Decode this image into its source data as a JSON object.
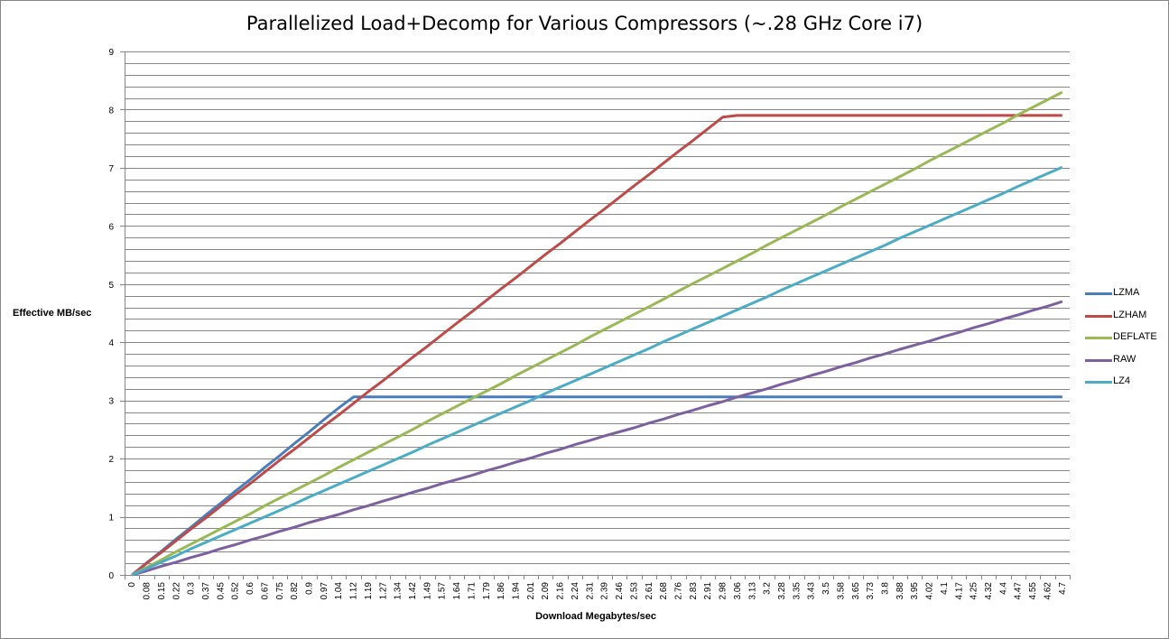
{
  "chart_data": {
    "type": "line",
    "title": "Parallelized Load+Decomp for Various Compressors (~.28 GHz Core i7)",
    "xlabel": "Download Megabytes/sec",
    "ylabel": "Effective MB/sec",
    "ylim": [
      0,
      9
    ],
    "yticks": [
      "0",
      "1",
      "2",
      "3",
      "4",
      "5",
      "6",
      "7",
      "8",
      "9"
    ],
    "grid": true,
    "legend_position": "right",
    "categories": [
      "0",
      "0.08",
      "0.15",
      "0.22",
      "0.3",
      "0.37",
      "0.45",
      "0.52",
      "0.6",
      "0.67",
      "0.75",
      "0.82",
      "0.9",
      "0.97",
      "1.04",
      "1.12",
      "1.19",
      "1.27",
      "1.34",
      "1.42",
      "1.49",
      "1.57",
      "1.64",
      "1.71",
      "1.79",
      "1.86",
      "1.94",
      "2.01",
      "2.09",
      "2.16",
      "2.24",
      "2.31",
      "2.39",
      "2.46",
      "2.53",
      "2.61",
      "2.68",
      "2.76",
      "2.83",
      "2.91",
      "2.98",
      "3.06",
      "3.13",
      "3.2",
      "3.28",
      "3.35",
      "3.43",
      "3.5",
      "3.58",
      "3.65",
      "3.73",
      "3.8",
      "3.88",
      "3.95",
      "4.02",
      "4.1",
      "4.17",
      "4.25",
      "4.32",
      "4.4",
      "4.47",
      "4.55",
      "4.62",
      "4.7"
    ],
    "series": [
      {
        "name": "LZMA",
        "color": "#4a7ebb",
        "values": [
          0,
          0.21,
          0.41,
          0.62,
          0.82,
          1.03,
          1.23,
          1.44,
          1.64,
          1.85,
          2.05,
          2.26,
          2.46,
          2.67,
          2.87,
          3.06,
          3.06,
          3.06,
          3.06,
          3.06,
          3.06,
          3.06,
          3.06,
          3.06,
          3.06,
          3.06,
          3.06,
          3.06,
          3.06,
          3.06,
          3.06,
          3.06,
          3.06,
          3.06,
          3.06,
          3.06,
          3.06,
          3.06,
          3.06,
          3.06,
          3.06,
          3.06,
          3.06,
          3.06,
          3.06,
          3.06,
          3.06,
          3.06,
          3.06,
          3.06,
          3.06,
          3.06,
          3.06,
          3.06,
          3.06,
          3.06,
          3.06,
          3.06,
          3.06,
          3.06,
          3.06,
          3.06,
          3.06,
          3.06
        ]
      },
      {
        "name": "LZHAM",
        "color": "#be4b48",
        "values": [
          0,
          0.2,
          0.39,
          0.59,
          0.79,
          0.98,
          1.18,
          1.38,
          1.57,
          1.77,
          1.97,
          2.16,
          2.36,
          2.56,
          2.75,
          2.95,
          3.15,
          3.34,
          3.54,
          3.74,
          3.93,
          4.13,
          4.33,
          4.52,
          4.72,
          4.92,
          5.11,
          5.31,
          5.51,
          5.7,
          5.9,
          6.1,
          6.29,
          6.49,
          6.69,
          6.88,
          7.08,
          7.28,
          7.47,
          7.67,
          7.87,
          7.9,
          7.9,
          7.9,
          7.9,
          7.9,
          7.9,
          7.9,
          7.9,
          7.9,
          7.9,
          7.9,
          7.9,
          7.9,
          7.9,
          7.9,
          7.9,
          7.9,
          7.9,
          7.9,
          7.9,
          7.9,
          7.9,
          7.9
        ]
      },
      {
        "name": "DEFLATE",
        "color": "#98b954",
        "values": [
          0,
          0.13,
          0.26,
          0.4,
          0.53,
          0.66,
          0.79,
          0.92,
          1.05,
          1.19,
          1.32,
          1.45,
          1.58,
          1.71,
          1.85,
          1.98,
          2.11,
          2.24,
          2.37,
          2.5,
          2.64,
          2.77,
          2.9,
          3.03,
          3.16,
          3.29,
          3.43,
          3.56,
          3.69,
          3.82,
          3.95,
          4.09,
          4.22,
          4.35,
          4.48,
          4.61,
          4.74,
          4.88,
          5.01,
          5.14,
          5.27,
          5.4,
          5.53,
          5.67,
          5.8,
          5.93,
          6.06,
          6.19,
          6.33,
          6.46,
          6.59,
          6.72,
          6.85,
          6.98,
          7.12,
          7.25,
          7.38,
          7.51,
          7.64,
          7.77,
          7.91,
          8.04,
          8.17,
          8.3
        ]
      },
      {
        "name": "RAW",
        "color": "#7d60a0",
        "values": [
          0,
          0.07,
          0.15,
          0.22,
          0.3,
          0.37,
          0.45,
          0.52,
          0.6,
          0.67,
          0.75,
          0.82,
          0.9,
          0.97,
          1.04,
          1.12,
          1.19,
          1.27,
          1.34,
          1.42,
          1.49,
          1.57,
          1.64,
          1.71,
          1.79,
          1.86,
          1.94,
          2.01,
          2.09,
          2.16,
          2.24,
          2.31,
          2.39,
          2.46,
          2.53,
          2.61,
          2.68,
          2.76,
          2.83,
          2.91,
          2.98,
          3.06,
          3.13,
          3.2,
          3.28,
          3.35,
          3.43,
          3.5,
          3.58,
          3.65,
          3.73,
          3.8,
          3.88,
          3.95,
          4.02,
          4.1,
          4.17,
          4.25,
          4.32,
          4.4,
          4.47,
          4.55,
          4.62,
          4.7
        ]
      },
      {
        "name": "LZ4",
        "color": "#4bacc6",
        "values": [
          0,
          0.11,
          0.22,
          0.33,
          0.45,
          0.56,
          0.67,
          0.78,
          0.89,
          1,
          1.11,
          1.22,
          1.34,
          1.45,
          1.56,
          1.67,
          1.78,
          1.89,
          2,
          2.11,
          2.23,
          2.34,
          2.45,
          2.56,
          2.67,
          2.78,
          2.89,
          3,
          3.12,
          3.23,
          3.34,
          3.45,
          3.56,
          3.67,
          3.78,
          3.89,
          4.01,
          4.12,
          4.23,
          4.34,
          4.45,
          4.56,
          4.67,
          4.78,
          4.9,
          5.01,
          5.12,
          5.23,
          5.34,
          5.45,
          5.56,
          5.67,
          5.79,
          5.9,
          6.01,
          6.12,
          6.23,
          6.34,
          6.45,
          6.56,
          6.68,
          6.79,
          6.9,
          7.01
        ]
      }
    ]
  }
}
